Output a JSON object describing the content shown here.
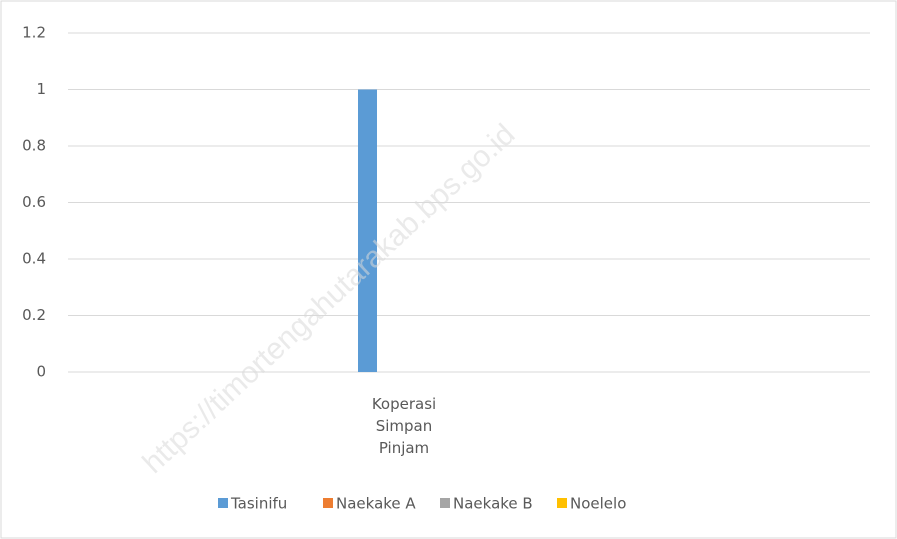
{
  "chart_data": {
    "type": "bar",
    "categories": [
      "Koperasi Simpan Pinjam"
    ],
    "series": [
      {
        "name": "Tasinifu",
        "color": "#5b9bd5",
        "values": [
          1
        ]
      },
      {
        "name": "Naekake A",
        "color": "#ed7d31",
        "values": [
          0
        ]
      },
      {
        "name": "Naekake B",
        "color": "#a5a5a5",
        "values": [
          0
        ]
      },
      {
        "name": "Noelelo",
        "color": "#ffc000",
        "values": [
          0
        ]
      }
    ],
    "ylim": [
      0,
      1.2
    ],
    "yticks": [
      0,
      0.2,
      0.4,
      0.6,
      0.8,
      1,
      1.2
    ],
    "grid": true,
    "legend": "bottom",
    "watermark": "https://timortengahutarakab.bps.go.id"
  }
}
